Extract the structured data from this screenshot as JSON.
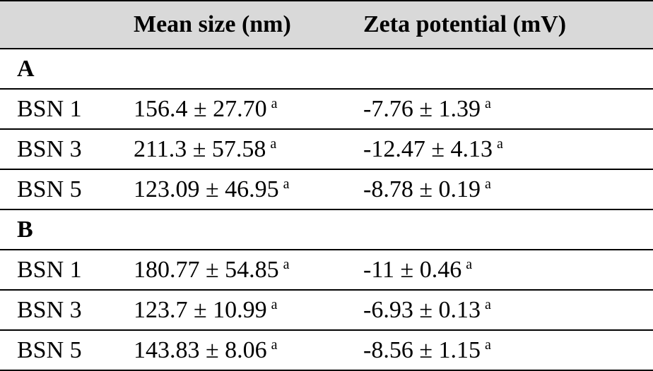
{
  "table": {
    "headers": [
      "",
      "Mean size (nm)",
      "Zeta potential (mV)"
    ],
    "groups": [
      {
        "label": "A",
        "rows": [
          {
            "sample": "BSN 1",
            "size": "156.4 ± 27.70",
            "size_sup": "a",
            "zeta": "-7.76 ± 1.39",
            "zeta_sup": "a"
          },
          {
            "sample": "BSN 3",
            "size": "211.3 ± 57.58",
            "size_sup": "a",
            "zeta": "-12.47 ± 4.13",
            "zeta_sup": "a"
          },
          {
            "sample": "BSN 5",
            "size": "123.09 ± 46.95",
            "size_sup": "a",
            "zeta": "-8.78 ± 0.19",
            "zeta_sup": "a"
          }
        ]
      },
      {
        "label": "B",
        "rows": [
          {
            "sample": "BSN 1",
            "size": "180.77 ± 54.85",
            "size_sup": "a",
            "zeta": "-11 ± 0.46",
            "zeta_sup": "a"
          },
          {
            "sample": "BSN 3",
            "size": "123.7 ± 10.99",
            "size_sup": "a",
            "zeta": "-6.93 ± 0.13",
            "zeta_sup": "a"
          },
          {
            "sample": "BSN 5",
            "size": "143.83 ± 8.06",
            "size_sup": "a",
            "zeta": "-8.56 ± 1.15",
            "zeta_sup": "a"
          }
        ]
      }
    ]
  },
  "colors": {
    "header_background": "#d9d9d9",
    "rule": "#000000"
  }
}
